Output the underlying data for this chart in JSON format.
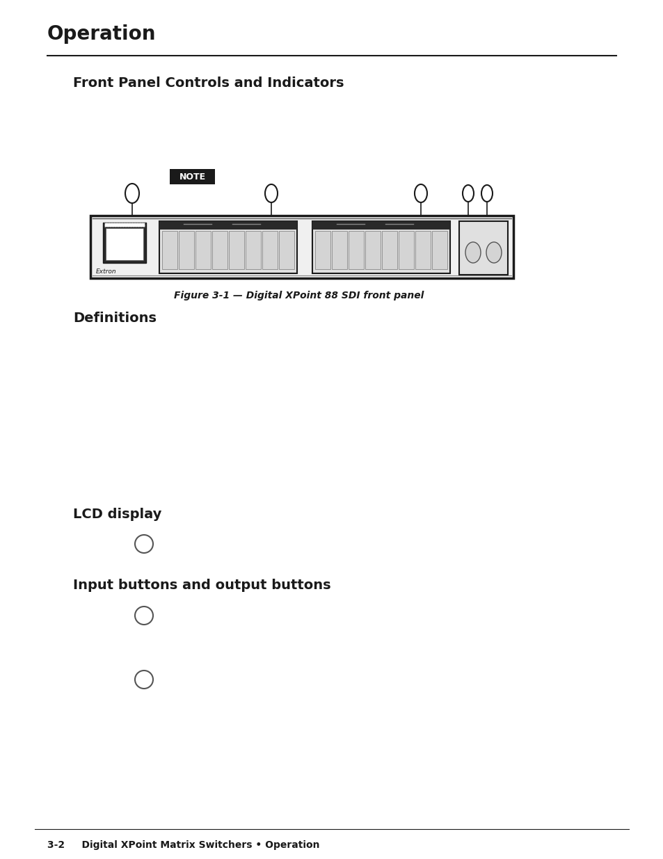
{
  "bg_color": "#ffffff",
  "page_title": "Operation",
  "section1_heading": "Front Panel Controls and Indicators",
  "note_label": "NOTE",
  "figure_caption": "Figure 3-1 — Digital XPoint 88 SDI front panel",
  "section2_heading": "Definitions",
  "lcd_label": "LCD display",
  "input_output_label": "Input buttons and output buttons",
  "footer_text": "3-2     Digital XPoint Matrix Switchers • Operation",
  "extron_label": "Extron",
  "title_fontsize": 20,
  "heading_fontsize": 14,
  "body_fontsize": 11,
  "footer_fontsize": 10,
  "caption_fontsize": 10,
  "note_fontsize": 9
}
